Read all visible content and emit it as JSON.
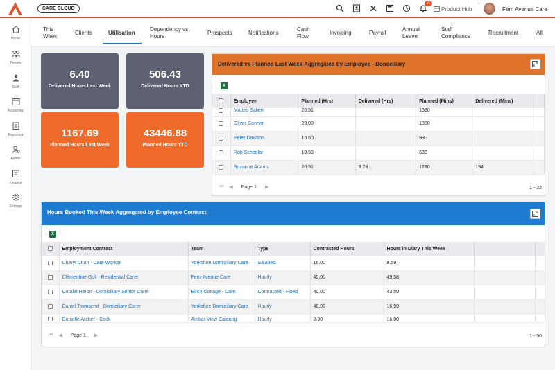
{
  "header": {
    "brand_pill": "CARE CLOUD",
    "product_hub": "Product Hub",
    "info_marker": "i",
    "org_name": "Fern Avenue Care",
    "notification_count": "15",
    "accent_color": "#e4542a"
  },
  "sidebar": {
    "items": [
      {
        "label": "Home",
        "icon": "home-icon"
      },
      {
        "label": "People",
        "icon": "people-icon"
      },
      {
        "label": "Staff",
        "icon": "staff-icon"
      },
      {
        "label": "Rostering",
        "icon": "rostering-icon"
      },
      {
        "label": "Reporting",
        "icon": "reporting-icon"
      },
      {
        "label": "Admin",
        "icon": "admin-icon"
      },
      {
        "label": "Finance",
        "icon": "finance-icon"
      },
      {
        "label": "Settings",
        "icon": "settings-icon"
      }
    ]
  },
  "tabs": [
    {
      "label": "This Week"
    },
    {
      "label": "Clients"
    },
    {
      "label": "Utilisation",
      "active": true
    },
    {
      "label": "Dependency vs. Hours"
    },
    {
      "label": "Prospects"
    },
    {
      "label": "Notifications"
    },
    {
      "label": "Cash Flow"
    },
    {
      "label": "Invoicing"
    },
    {
      "label": "Payroll"
    },
    {
      "label": "Annual Leave"
    },
    {
      "label": "Staff Compliance"
    },
    {
      "label": "Recruitment"
    },
    {
      "label": "All"
    }
  ],
  "stats": [
    {
      "value": "6.40",
      "label": "Delivered Hours Last Week"
    },
    {
      "value": "506.43",
      "label": "Delivered Hours YTD"
    },
    {
      "value": "1167.69",
      "label": "Planned Hours Last Week"
    },
    {
      "value": "43446.88",
      "label": "Planned Hours YTD"
    }
  ],
  "panel1": {
    "title": "Delivered vs Planned Last Week Aggregated by Employee - Domiciliary",
    "columns": [
      "Employee",
      "Planned (Hrs)",
      "Delivered (Hrs)",
      "Planned (Mins)",
      "Delivered (Mins)"
    ],
    "rows": [
      [
        "Matteo Salieri",
        "26.51",
        "",
        "1590",
        ""
      ],
      [
        "Oliver Connor",
        "23.00",
        "",
        "1380",
        ""
      ],
      [
        "Peter Dawson",
        "16.50",
        "",
        "990",
        ""
      ],
      [
        "Rob Schoolar",
        "10.58",
        "",
        "635",
        ""
      ],
      [
        "Suzanne Adams",
        "20.51",
        "3.23",
        "1230",
        "194"
      ]
    ],
    "page_label": "Page 1",
    "count": "1 - 22",
    "excel_glyph": "X"
  },
  "panel2": {
    "title": "Hours Booked This Week Aggregated by Employee Contract",
    "columns": [
      "Employment Contract",
      "Team",
      "Type",
      "Contracted Hours",
      "Hours in Diary This Week"
    ],
    "rows": [
      [
        "Cheryl Chan - Care Worker",
        "Yorkshire Domiciliary Care",
        "Salaried",
        "16.00",
        "9.59"
      ],
      [
        "Clémentine Gull - Residential Carer",
        "Fern Avenue Care",
        "Hourly",
        "40.00",
        "49.58"
      ],
      [
        "Coralie Heron - Domiciliary Senior Carer",
        "Birch Cottage - Care",
        "Contracted - Fixed",
        "40.00",
        "43.50"
      ],
      [
        "Daniel Townsend - Domiciliary Carer",
        "Yorkshire Domiciliary Care",
        "Hourly",
        "48.00",
        "16.90"
      ],
      [
        "Danielle Archer - Cook",
        "Amber View Catering",
        "Hourly",
        "0.00",
        "16.00"
      ]
    ],
    "page_label": "Page 1",
    "count": "1 - 50",
    "excel_glyph": "X"
  }
}
